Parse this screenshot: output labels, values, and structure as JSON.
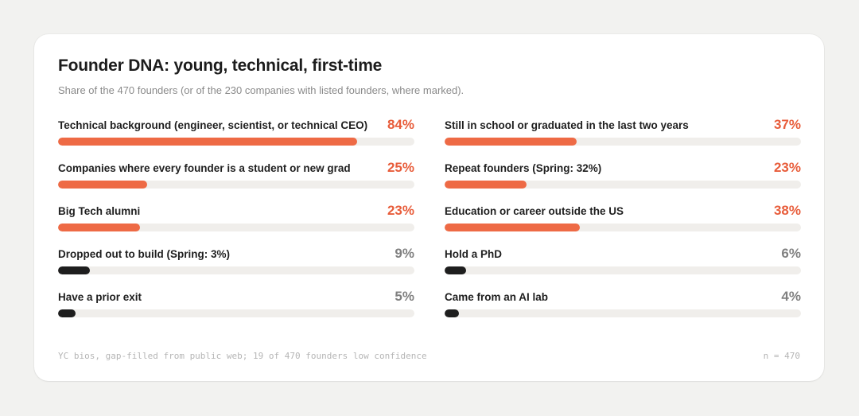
{
  "colors": {
    "background": "#f2f2f0",
    "card": "#ffffff",
    "highlight": "#ee6a45",
    "highlight_text": "#e85d3b",
    "muted_bar": "#1e1e1e",
    "muted_text": "#808080",
    "track": "#f0eeeb"
  },
  "chart_data": {
    "type": "bar",
    "orientation": "horizontal",
    "title": "Founder DNA: young, technical, first-time",
    "subtitle": "Share of the 470 founders (or of the 230 companies with listed founders, where marked).",
    "xlim": [
      0,
      100
    ],
    "unit": "%",
    "columns": [
      [
        {
          "label": "Technical background (engineer, scientist, or technical CEO)",
          "value": 84,
          "display": "84%",
          "highlight": true
        },
        {
          "label": "Companies where every founder is a student or new grad",
          "value": 25,
          "display": "25%",
          "highlight": true
        },
        {
          "label": "Big Tech alumni",
          "value": 23,
          "display": "23%",
          "highlight": true
        },
        {
          "label": "Dropped out to build (Spring: 3%)",
          "value": 9,
          "display": "9%",
          "highlight": false
        },
        {
          "label": "Have a prior exit",
          "value": 5,
          "display": "5%",
          "highlight": false
        }
      ],
      [
        {
          "label": "Still in school or graduated in the last two years",
          "value": 37,
          "display": "37%",
          "highlight": true
        },
        {
          "label": "Repeat founders (Spring: 32%)",
          "value": 23,
          "display": "23%",
          "highlight": true
        },
        {
          "label": "Education or career outside the US",
          "value": 38,
          "display": "38%",
          "highlight": true
        },
        {
          "label": "Hold a PhD",
          "value": 6,
          "display": "6%",
          "highlight": false
        },
        {
          "label": "Came from an AI lab",
          "value": 4,
          "display": "4%",
          "highlight": false
        }
      ]
    ],
    "footer_note": "YC bios, gap-filled from public web; 19 of 470 founders low confidence",
    "sample_size": "n = 470"
  }
}
